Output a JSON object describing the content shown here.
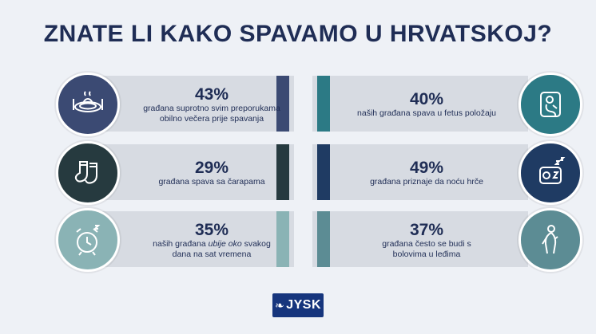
{
  "title": "ZNATE LI KAKO SPAVAMO U HRVATSKOJ?",
  "stats": [
    {
      "percent": "43%",
      "lines": [
        "građana suprotno svim preporukama",
        "obilno večera prije spavanja"
      ],
      "icon": "plate-icon",
      "color": "#3b4a73"
    },
    {
      "percent": "40%",
      "lines": [
        "naših građana spava u fetus položaju"
      ],
      "icon": "sleeping-person-icon",
      "color": "#2c7a85"
    },
    {
      "percent": "29%",
      "lines": [
        "građana spava sa čarapama"
      ],
      "icon": "socks-icon",
      "color": "#263a3f"
    },
    {
      "percent": "49%",
      "lines": [
        "građana priznaje da noću hrče"
      ],
      "icon": "snoring-icon",
      "color": "#1f3b63"
    },
    {
      "percent": "35%",
      "lines_html": "naših građana <i>ubije oko</i> svakog",
      "lines": [
        "dana na sat vremena"
      ],
      "icon": "alarm-clock-icon",
      "color": "#8ab3b5"
    },
    {
      "percent": "37%",
      "lines": [
        "građana često se budi s",
        "bolovima u leđima"
      ],
      "icon": "back-pain-icon",
      "color": "#5c8c94"
    }
  ],
  "stat35_line1_pre": "naših građana ",
  "stat35_line1_em": "ubije oko",
  "stat35_line1_post": " svakog",
  "logo": {
    "text": "JYSK",
    "color": "#16357d"
  }
}
